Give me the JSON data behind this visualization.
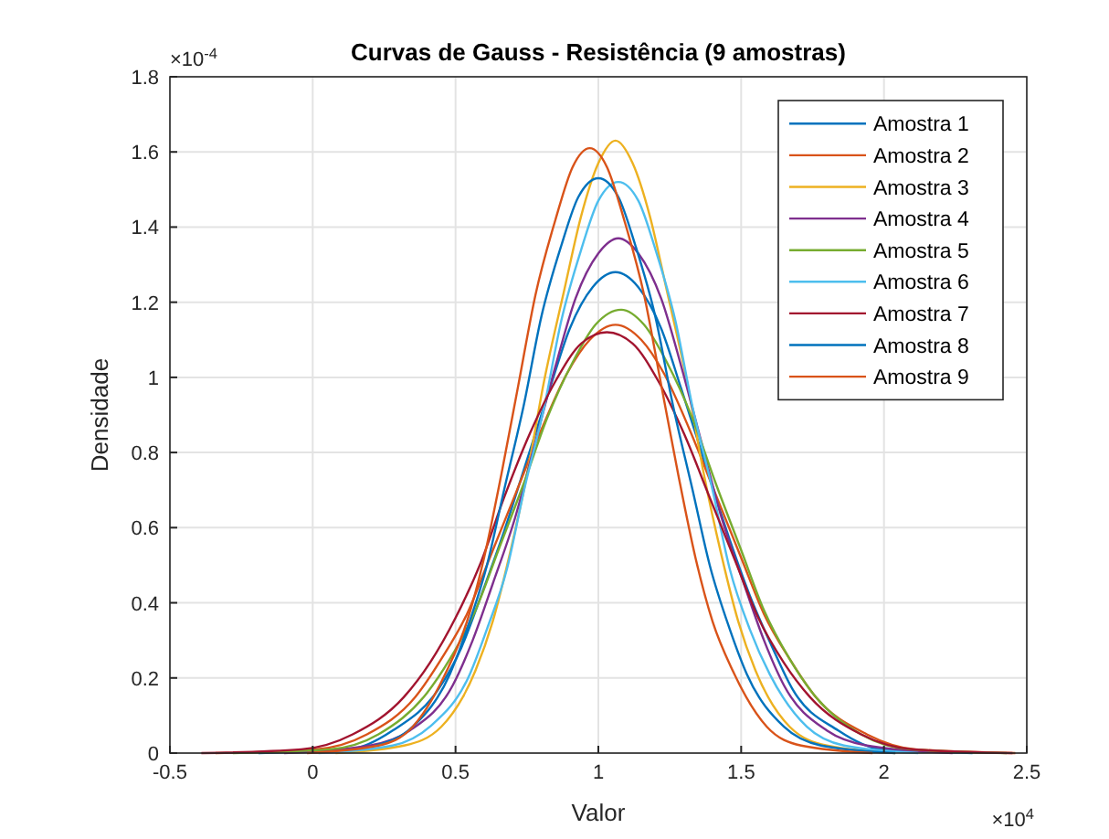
{
  "chart_data": {
    "type": "line",
    "title": "Curvas de Gauss - Resistência (9 amostras)",
    "xlabel": "Valor",
    "ylabel": "Densidade",
    "annotations": [
      "×10$^{-4}$",
      "×10$^{4}$"
    ],
    "xlim": [
      -0.5,
      2.5
    ],
    "xticks": [
      -0.5,
      0,
      0.5,
      1,
      1.5,
      2,
      2.5
    ],
    "ylim": [
      0,
      1.8
    ],
    "yticks": [
      0,
      0.2,
      0.4,
      0.6,
      0.8,
      1,
      1.2,
      1.4,
      1.6,
      1.8
    ],
    "grid": true,
    "legend": "top right",
    "line_style": "solid",
    "marker": "none",
    "series": [
      {
        "name": "Amostra 1",
        "color": "#0072bd",
        "x": [
          -0.19,
          0.13,
          0.28,
          0.44,
          0.52,
          0.59,
          0.67,
          0.75,
          0.83,
          0.9,
          0.98,
          1.06,
          1.14,
          1.22,
          1.29,
          1.37,
          1.45,
          1.53,
          1.61,
          1.68,
          1.84,
          1.99,
          2.31
        ],
        "values": [
          0,
          0.01,
          0.06,
          0.17,
          0.28,
          0.42,
          0.59,
          0.78,
          0.97,
          1.13,
          1.24,
          1.28,
          1.24,
          1.13,
          0.97,
          0.78,
          0.59,
          0.42,
          0.28,
          0.17,
          0.06,
          0.01,
          0
        ]
      },
      {
        "name": "Amostra 2",
        "color": "#d95319",
        "x": [
          -0.34,
          0.01,
          0.19,
          0.36,
          0.45,
          0.54,
          0.62,
          0.71,
          0.8,
          0.89,
          0.97,
          1.06,
          1.15,
          1.23,
          1.32,
          1.41,
          1.5,
          1.58,
          1.67,
          1.76,
          1.94,
          2.11,
          2.46
        ],
        "values": [
          0,
          0.01,
          0.05,
          0.15,
          0.25,
          0.37,
          0.52,
          0.69,
          0.86,
          1.01,
          1.1,
          1.14,
          1.1,
          1.01,
          0.86,
          0.69,
          0.52,
          0.37,
          0.25,
          0.15,
          0.05,
          0.01,
          0
        ]
      },
      {
        "name": "Amostra 3",
        "color": "#edb120",
        "x": [
          0.08,
          0.32,
          0.45,
          0.57,
          0.63,
          0.69,
          0.75,
          0.81,
          0.88,
          0.94,
          1.0,
          1.06,
          1.12,
          1.18,
          1.24,
          1.31,
          1.37,
          1.43,
          1.49,
          1.55,
          1.67,
          1.8,
          2.04
        ],
        "values": [
          0,
          0.02,
          0.07,
          0.22,
          0.35,
          0.53,
          0.74,
          0.99,
          1.23,
          1.43,
          1.57,
          1.63,
          1.57,
          1.43,
          1.23,
          0.99,
          0.74,
          0.53,
          0.35,
          0.22,
          0.07,
          0.02,
          0
        ]
      },
      {
        "name": "Amostra 4",
        "color": "#7e2f8e",
        "x": [
          -0.1,
          0.2,
          0.34,
          0.49,
          0.56,
          0.63,
          0.71,
          0.78,
          0.85,
          0.92,
          1.0,
          1.07,
          1.14,
          1.22,
          1.29,
          1.36,
          1.43,
          1.51,
          1.58,
          1.65,
          1.8,
          1.94,
          2.24
        ],
        "values": [
          0,
          0.02,
          0.06,
          0.18,
          0.3,
          0.45,
          0.63,
          0.83,
          1.03,
          1.21,
          1.33,
          1.37,
          1.33,
          1.21,
          1.03,
          0.83,
          0.63,
          0.45,
          0.3,
          0.18,
          0.06,
          0.02,
          0
        ]
      },
      {
        "name": "Amostra 5",
        "color": "#77ac30",
        "x": [
          -0.28,
          0.06,
          0.23,
          0.4,
          0.48,
          0.57,
          0.65,
          0.74,
          0.82,
          0.91,
          0.99,
          1.08,
          1.16,
          1.24,
          1.33,
          1.41,
          1.5,
          1.58,
          1.67,
          1.75,
          1.92,
          2.09,
          2.43
        ],
        "values": [
          0,
          0.01,
          0.05,
          0.16,
          0.25,
          0.38,
          0.54,
          0.72,
          0.89,
          1.04,
          1.14,
          1.18,
          1.14,
          1.04,
          0.89,
          0.72,
          0.54,
          0.38,
          0.25,
          0.16,
          0.05,
          0.01,
          0
        ]
      },
      {
        "name": "Amostra 6",
        "color": "#4dbeee",
        "x": [
          0.02,
          0.28,
          0.41,
          0.55,
          0.61,
          0.68,
          0.74,
          0.81,
          0.87,
          0.94,
          1.0,
          1.07,
          1.14,
          1.2,
          1.27,
          1.33,
          1.4,
          1.46,
          1.53,
          1.6,
          1.73,
          1.86,
          2.12
        ],
        "values": [
          0,
          0.02,
          0.07,
          0.21,
          0.33,
          0.49,
          0.7,
          0.92,
          1.15,
          1.34,
          1.47,
          1.52,
          1.47,
          1.34,
          1.15,
          0.92,
          0.7,
          0.49,
          0.33,
          0.21,
          0.07,
          0.02,
          0
        ]
      },
      {
        "name": "Amostra 7",
        "color": "#a2142f",
        "x": [
          -0.39,
          -0.04,
          0.14,
          0.32,
          0.41,
          0.5,
          0.59,
          0.67,
          0.76,
          0.85,
          0.94,
          1.03,
          1.12,
          1.21,
          1.3,
          1.39,
          1.48,
          1.56,
          1.65,
          1.74,
          1.92,
          2.1,
          2.45
        ],
        "values": [
          0,
          0.01,
          0.05,
          0.15,
          0.24,
          0.36,
          0.51,
          0.68,
          0.85,
          0.99,
          1.09,
          1.12,
          1.09,
          0.99,
          0.85,
          0.68,
          0.51,
          0.36,
          0.24,
          0.15,
          0.05,
          0.01,
          0
        ]
      },
      {
        "name": "Amostra 8",
        "color": "#0072bd",
        "x": [
          0.22,
          0.35,
          0.48,
          0.54,
          0.61,
          0.67,
          0.74,
          0.8,
          0.87,
          0.93,
          1.0,
          1.07,
          1.13,
          1.2,
          1.26,
          1.33,
          1.39,
          1.46,
          1.52,
          1.65,
          1.78,
          2.04
        ],
        "values": [
          0.02,
          0.07,
          0.21,
          0.33,
          0.5,
          0.7,
          0.93,
          1.16,
          1.35,
          1.48,
          1.53,
          1.48,
          1.35,
          1.16,
          0.93,
          0.7,
          0.5,
          0.33,
          0.21,
          0.07,
          0.02,
          0
        ]
      },
      {
        "name": "Amostra 9",
        "color": "#d95319",
        "x": [
          -0.02,
          0.23,
          0.35,
          0.47,
          0.54,
          0.6,
          0.66,
          0.72,
          0.78,
          0.85,
          0.91,
          0.97,
          1.03,
          1.09,
          1.16,
          1.22,
          1.28,
          1.34,
          1.4,
          1.47,
          1.59,
          1.71,
          1.96
        ],
        "values": [
          0,
          0.02,
          0.07,
          0.22,
          0.35,
          0.52,
          0.74,
          0.98,
          1.22,
          1.42,
          1.56,
          1.61,
          1.56,
          1.42,
          1.22,
          0.98,
          0.74,
          0.52,
          0.35,
          0.22,
          0.07,
          0.02,
          0
        ]
      }
    ]
  }
}
